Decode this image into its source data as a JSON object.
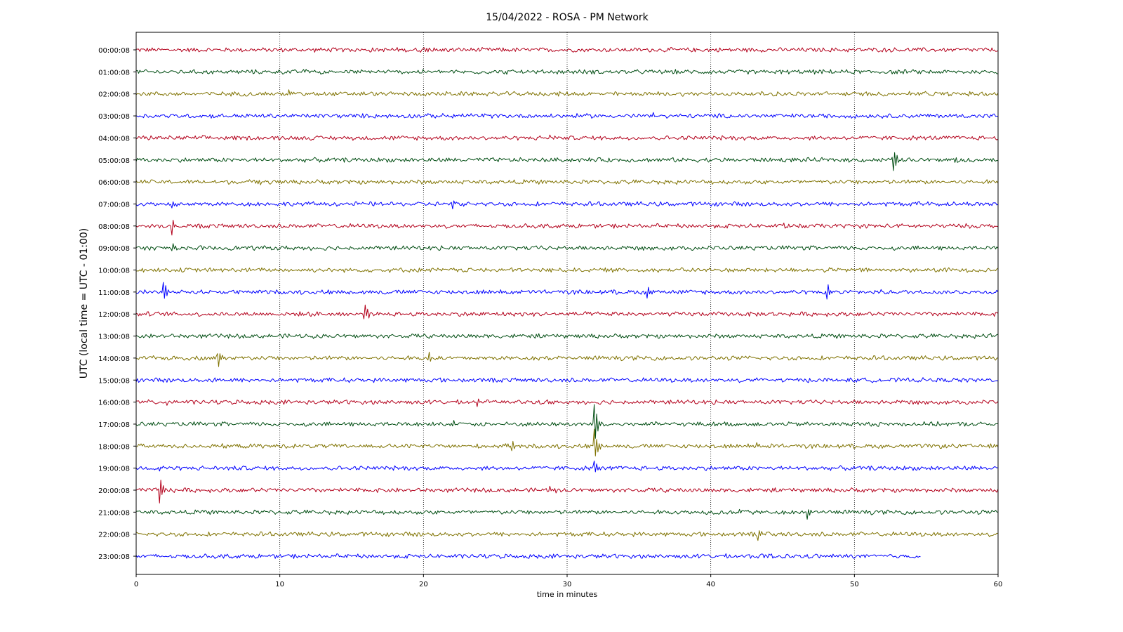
{
  "chart_data": {
    "type": "line",
    "title": "15/04/2022 - ROSA - PM Network",
    "xlabel": "time in minutes",
    "ylabel": "UTC (local time = UTC - 01:00)",
    "xlim": [
      0,
      60
    ],
    "xticks": [
      0,
      10,
      20,
      30,
      40,
      50,
      60
    ],
    "grid": "vertical dotted lines at x ticks",
    "trace_colors": [
      "#b3001b",
      "#004d12",
      "#7f7200",
      "#0000ff"
    ],
    "noise_amplitude": 0.12,
    "traces": [
      {
        "label": "00:00:08",
        "end": 60,
        "events": [
          [
            20.1,
            0.4
          ],
          [
            14.0,
            0.15
          ]
        ]
      },
      {
        "label": "01:00:08",
        "end": 60,
        "events": [
          [
            11.7,
            0.15
          ],
          [
            26.4,
            0.15
          ]
        ]
      },
      {
        "label": "02:00:08",
        "end": 60,
        "events": [
          [
            10.6,
            0.3
          ],
          [
            53.5,
            0.15
          ]
        ]
      },
      {
        "label": "03:00:08",
        "end": 60,
        "events": [
          [
            22.0,
            0.2
          ],
          [
            36.0,
            0.15
          ]
        ]
      },
      {
        "label": "04:00:08",
        "end": 60,
        "events": [
          [
            28.8,
            0.15
          ]
        ]
      },
      {
        "label": "05:00:08",
        "end": 60,
        "events": [
          [
            52.7,
            1.0
          ],
          [
            57.0,
            0.15
          ]
        ]
      },
      {
        "label": "06:00:08",
        "end": 60,
        "events": [
          [
            8.6,
            0.35
          ]
        ]
      },
      {
        "label": "07:00:08",
        "end": 60,
        "events": [
          [
            2.5,
            0.2
          ],
          [
            22.0,
            0.3
          ],
          [
            54.5,
            0.2
          ]
        ]
      },
      {
        "label": "08:00:08",
        "end": 60,
        "events": [
          [
            2.5,
            0.7
          ],
          [
            45.0,
            0.15
          ]
        ]
      },
      {
        "label": "09:00:08",
        "end": 60,
        "events": [
          [
            2.5,
            0.3
          ]
        ]
      },
      {
        "label": "10:00:08",
        "end": 60,
        "events": [
          [
            60.0,
            0.15
          ]
        ]
      },
      {
        "label": "11:00:08",
        "end": 60,
        "events": [
          [
            1.9,
            0.8
          ],
          [
            35.6,
            0.6
          ],
          [
            48.1,
            0.6
          ]
        ]
      },
      {
        "label": "12:00:08",
        "end": 60,
        "events": [
          [
            15.9,
            0.9
          ],
          [
            23.0,
            0.2
          ]
        ]
      },
      {
        "label": "13:00:08",
        "end": 60,
        "events": [
          [
            59.5,
            0.2
          ]
        ]
      },
      {
        "label": "14:00:08",
        "end": 60,
        "events": [
          [
            5.7,
            0.8
          ],
          [
            20.4,
            0.5
          ],
          [
            28.0,
            0.2
          ]
        ]
      },
      {
        "label": "15:00:08",
        "end": 60,
        "events": [
          [
            5.5,
            0.2
          ],
          [
            43.0,
            0.15
          ]
        ]
      },
      {
        "label": "16:00:08",
        "end": 60,
        "events": [
          [
            2.1,
            0.25
          ],
          [
            23.7,
            0.25
          ],
          [
            28.7,
            0.3
          ]
        ]
      },
      {
        "label": "17:00:08",
        "end": 60,
        "events": [
          [
            22.0,
            0.3
          ],
          [
            31.9,
            1.7
          ]
        ]
      },
      {
        "label": "18:00:08",
        "end": 60,
        "events": [
          [
            26.1,
            0.6
          ],
          [
            31.9,
            1.4
          ],
          [
            43.2,
            0.2
          ]
        ]
      },
      {
        "label": "19:00:08",
        "end": 60,
        "events": [
          [
            1.6,
            0.25
          ],
          [
            31.9,
            0.8
          ]
        ]
      },
      {
        "label": "20:00:08",
        "end": 60,
        "events": [
          [
            1.6,
            1.1
          ],
          [
            28.8,
            0.3
          ]
        ]
      },
      {
        "label": "21:00:08",
        "end": 60,
        "events": [
          [
            46.7,
            0.55
          ],
          [
            42.0,
            0.15
          ]
        ]
      },
      {
        "label": "22:00:08",
        "end": 60,
        "events": [
          [
            43.3,
            0.55
          ]
        ]
      },
      {
        "label": "23:00:08",
        "end": 54.6,
        "events": [
          [
            44.0,
            0.15
          ]
        ]
      }
    ]
  }
}
